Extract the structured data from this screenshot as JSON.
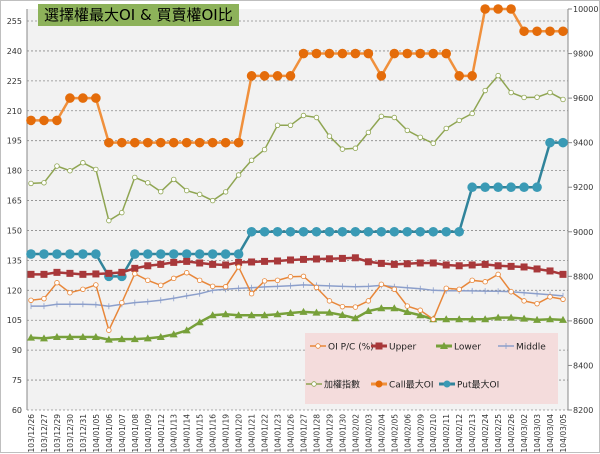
{
  "chart_data": {
    "type": "line",
    "title": "選擇權最大OI & 買賣權OI比",
    "categories": [
      "103/12/26",
      "103/12/27",
      "103/12/29",
      "103/12/30",
      "103/12/31",
      "104/01/05",
      "104/01/06",
      "104/01/07",
      "104/01/08",
      "104/01/09",
      "104/01/12",
      "104/01/13",
      "104/01/14",
      "104/01/15",
      "104/01/16",
      "104/01/19",
      "104/01/20",
      "104/01/21",
      "104/01/22",
      "104/01/23",
      "104/01/26",
      "104/01/27",
      "104/01/28",
      "104/01/29",
      "104/01/30",
      "104/02/02",
      "104/02/03",
      "104/02/04",
      "104/02/05",
      "104/02/06",
      "104/02/09",
      "104/02/10",
      "104/02/11",
      "104/02/12",
      "104/02/13",
      "104/02/24",
      "104/02/25",
      "104/02/26",
      "104/03/02",
      "104/03/03",
      "104/03/04",
      "104/03/05"
    ],
    "y_left": {
      "ylim": [
        60,
        255
      ],
      "ticks": [
        60,
        75,
        90,
        105,
        120,
        135,
        150,
        165,
        180,
        195,
        210,
        225,
        240,
        255
      ]
    },
    "y_right": {
      "ylim": [
        8200,
        10000
      ],
      "ticks": [
        8200,
        8400,
        8600,
        8800,
        9000,
        9200,
        9400,
        9600,
        9800,
        10000
      ]
    },
    "grid": true,
    "legend_placement": "bottom-right",
    "series": [
      {
        "name": "OI P/C (%)",
        "axis": "left",
        "color": "#e8873a",
        "marker": "hollow-circle",
        "values": [
          115.0,
          115.8,
          123.8,
          118.8,
          120.5,
          122.7,
          100.0,
          113.8,
          128.3,
          125.0,
          122.5,
          126.0,
          128.8,
          125.0,
          122.0,
          121.8,
          131.7,
          118.3,
          124.7,
          125.0,
          126.8,
          127.0,
          121.4,
          114.7,
          111.8,
          111.6,
          114.7,
          123.0,
          120.5,
          112.1,
          110.0,
          105.5,
          121.0,
          120.5,
          125.0,
          124.3,
          128.0,
          119.3,
          114.7,
          113.3,
          116.7,
          115.5
        ]
      },
      {
        "name": "Upper",
        "axis": "left",
        "color": "#a8383a",
        "marker": "square",
        "values": [
          128.0,
          128.0,
          129.0,
          128.5,
          128.0,
          128.2,
          128.5,
          129.0,
          131.0,
          132.3,
          133.0,
          134.0,
          134.5,
          133.7,
          133.0,
          132.7,
          134.0,
          134.2,
          134.5,
          134.7,
          135.2,
          135.5,
          135.7,
          135.8,
          136.0,
          136.3,
          134.3,
          133.5,
          133.0,
          133.3,
          133.7,
          133.7,
          132.7,
          132.3,
          132.7,
          133.0,
          132.3,
          132.0,
          131.7,
          130.7,
          129.7,
          128.0
        ]
      },
      {
        "name": "Lower",
        "axis": "left",
        "color": "#77a03a",
        "marker": "triangle",
        "values": [
          96.3,
          95.9,
          96.6,
          96.6,
          96.6,
          96.6,
          95.3,
          95.5,
          95.5,
          95.9,
          96.6,
          97.9,
          99.9,
          104.0,
          107.5,
          108.0,
          107.5,
          107.5,
          107.5,
          108.0,
          108.6,
          109.2,
          108.8,
          108.8,
          107.6,
          106.0,
          109.6,
          111.0,
          111.0,
          109.1,
          107.5,
          105.5,
          105.5,
          105.5,
          105.5,
          105.5,
          106.3,
          106.3,
          105.8,
          105.2,
          105.5,
          105.2
        ]
      },
      {
        "name": "Middle",
        "axis": "left",
        "color": "#8c9fcb",
        "marker": "plus",
        "values": [
          112.1,
          112.1,
          113.0,
          113.0,
          113.0,
          112.8,
          112.0,
          113.0,
          113.8,
          114.3,
          115.0,
          116.0,
          117.2,
          118.3,
          120.0,
          120.5,
          121.0,
          121.3,
          121.7,
          122.0,
          122.3,
          122.7,
          122.5,
          122.2,
          122.0,
          121.8,
          122.0,
          122.5,
          121.8,
          121.3,
          120.8,
          120.0,
          119.8,
          119.8,
          119.7,
          119.6,
          119.5,
          119.3,
          118.8,
          118.3,
          117.8,
          117.2
        ]
      },
      {
        "name": "加權指數",
        "axis": "right",
        "color": "#8fa552",
        "marker": "hollow-circle",
        "values": [
          9217,
          9220,
          9295,
          9274,
          9310,
          9280,
          9050,
          9086,
          9244,
          9220,
          9180,
          9235,
          9185,
          9168,
          9140,
          9179,
          9255,
          9321,
          9369,
          9478,
          9478,
          9522,
          9513,
          9429,
          9371,
          9375,
          9446,
          9518,
          9513,
          9455,
          9424,
          9397,
          9464,
          9500,
          9531,
          9634,
          9701,
          9625,
          9603,
          9604,
          9625,
          9594
        ]
      },
      {
        "name": "Call最大OI",
        "axis": "right",
        "color": "#f0903c",
        "marker_color": "#e46c0a",
        "marker": "circle",
        "values": [
          9500,
          9500,
          9500,
          9600,
          9600,
          9600,
          9400,
          9400,
          9400,
          9400,
          9400,
          9400,
          9400,
          9400,
          9400,
          9400,
          9400,
          9700,
          9700,
          9700,
          9700,
          9800,
          9800,
          9800,
          9800,
          9800,
          9800,
          9700,
          9800,
          9800,
          9800,
          9800,
          9800,
          9700,
          9700,
          10000,
          10000,
          10000,
          9900,
          9900,
          9900,
          9900
        ]
      },
      {
        "name": "Put最大OI",
        "axis": "right",
        "color": "#31849b",
        "marker_color": "#3a9ab5",
        "marker": "circle",
        "values": [
          8900,
          8900,
          8900,
          8900,
          8900,
          8900,
          8800,
          8800,
          8900,
          8900,
          8900,
          8900,
          8900,
          8900,
          8900,
          8900,
          8900,
          9000,
          9000,
          9000,
          9000,
          9000,
          9000,
          9000,
          9000,
          9000,
          9000,
          9000,
          9000,
          9000,
          9000,
          9000,
          9000,
          9000,
          9200,
          9200,
          9200,
          9200,
          9200,
          9200,
          9400,
          9400
        ]
      }
    ]
  }
}
